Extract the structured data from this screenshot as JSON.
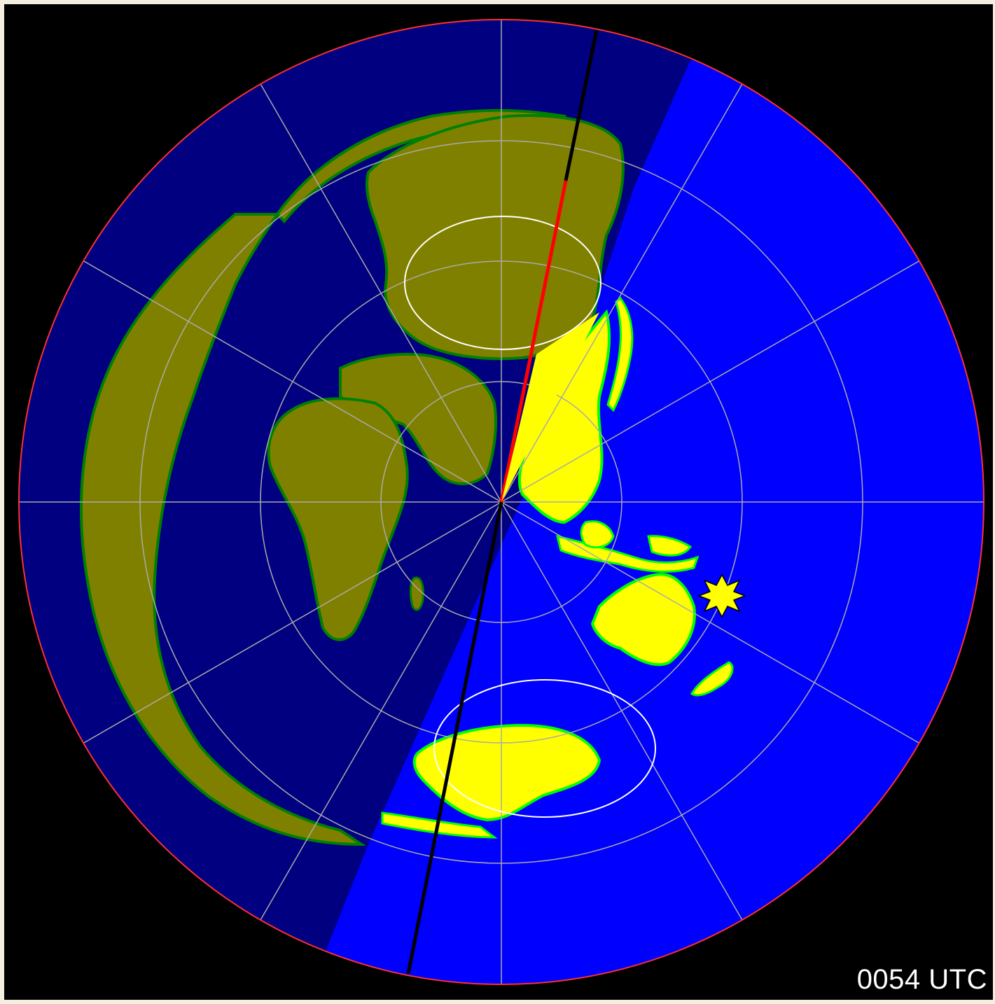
{
  "time_label": "0054 UTC",
  "colors": {
    "background": "#000000",
    "window_border": "#f3eedf",
    "night_ocean": "#000080",
    "day_ocean": "#0000ff",
    "night_land": "#808000",
    "day_land": "#ffff00",
    "coast": "#008000",
    "day_coast": "#00ff00",
    "grid": "#aaaaaa",
    "horizon_ring": "#ff3030",
    "auroral_oval": "#ffffff",
    "path_short": "#ff0000",
    "path_long": "#000000",
    "marker": "#ffff00"
  },
  "icons": {
    "qth_marker": "star-icon"
  }
}
